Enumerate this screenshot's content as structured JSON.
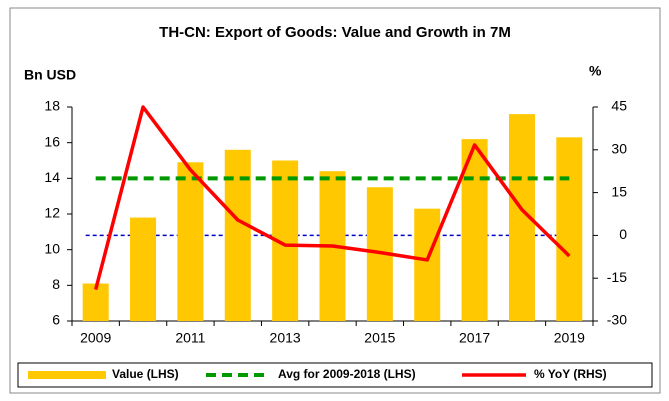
{
  "chart_data": {
    "type": "bar-line",
    "title": "TH-CN: Export of Goods: Value and Growth in 7M",
    "y_label": "Bn USD",
    "y2_label": "%",
    "categories": [
      "2009",
      null,
      "2011",
      null,
      "2013",
      null,
      "2015",
      null,
      "2017",
      null,
      "2019"
    ],
    "ylim": [
      6,
      18
    ],
    "yticks": [
      6,
      8,
      10,
      12,
      14,
      16,
      18
    ],
    "y2lim": [
      -30,
      45
    ],
    "y2ticks": [
      -30,
      -15,
      0,
      15,
      30,
      45
    ],
    "series": [
      {
        "name": "Value (LHS)",
        "type": "bar",
        "color": "#FFC800",
        "values": [
          8.1,
          11.8,
          14.9,
          15.6,
          15.0,
          14.4,
          13.5,
          12.3,
          16.2,
          17.6,
          16.3
        ]
      },
      {
        "name": "Avg for 2009-2018 (LHS)",
        "type": "dashed-line",
        "color": "#009900",
        "values": [
          14,
          14,
          14,
          14,
          14,
          14,
          14,
          14,
          14,
          14,
          14
        ]
      },
      {
        "name": "% YoY (RHS)",
        "type": "line",
        "axis": "y2",
        "color": "#FF0000",
        "values": [
          -19,
          45,
          23,
          5.4,
          -3.4,
          -3.7,
          -6,
          -8.6,
          31.7,
          9,
          -7.2
        ]
      }
    ],
    "zero_line_color": "#0000CC"
  }
}
